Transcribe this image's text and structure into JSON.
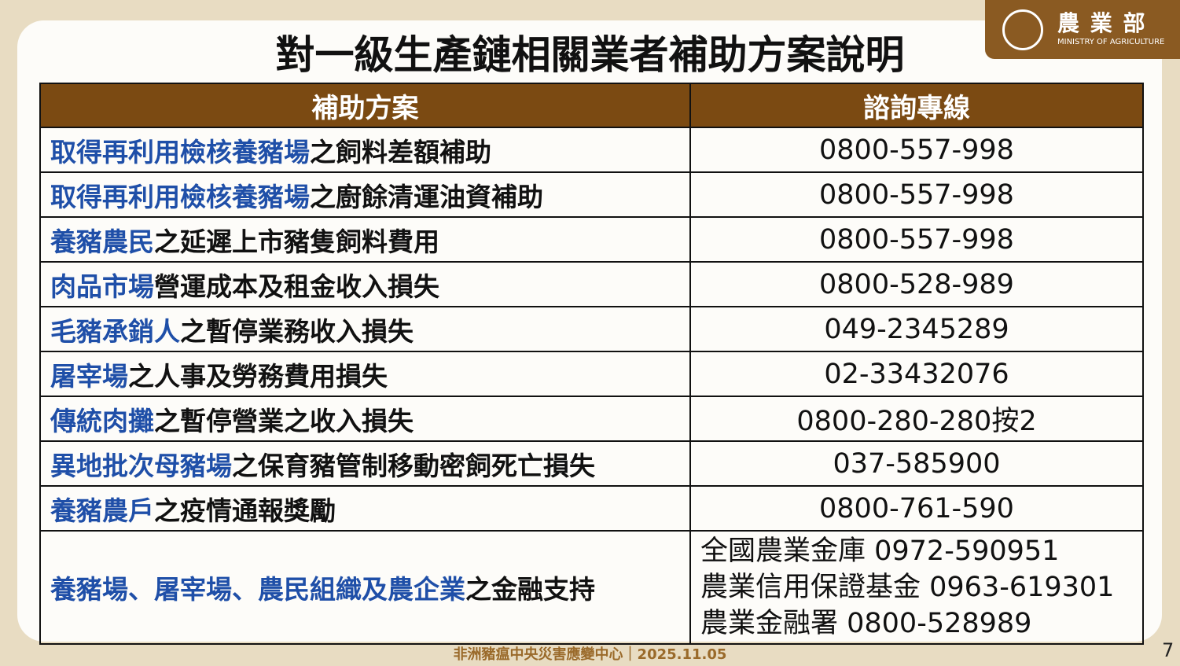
{
  "header": {
    "title": "對一級生產鏈相關業者補助方案說明",
    "logo_name": "農 業 部",
    "logo_subtitle": "MINISTRY OF AGRICULTURE"
  },
  "table": {
    "columns": [
      "補助方案",
      "諮詢專線"
    ],
    "rows": [
      {
        "program_highlight": "取得再利用檢核養豬場",
        "program_rest": "之飼料差額補助",
        "hotline": [
          "0800-557-998"
        ]
      },
      {
        "program_highlight": "取得再利用檢核養豬場",
        "program_rest": "之廚餘清運油資補助",
        "hotline": [
          "0800-557-998"
        ]
      },
      {
        "program_highlight": "養豬農民",
        "program_rest": "之延遲上市豬隻飼料費用",
        "hotline": [
          "0800-557-998"
        ]
      },
      {
        "program_highlight": "肉品市場",
        "program_rest": "營運成本及租金收入損失",
        "hotline": [
          "0800-528-989"
        ]
      },
      {
        "program_highlight": "毛豬承銷人",
        "program_rest": "之暫停業務收入損失",
        "hotline": [
          "049-2345289"
        ]
      },
      {
        "program_highlight": "屠宰場",
        "program_rest": "之人事及勞務費用損失",
        "hotline": [
          "02-33432076"
        ]
      },
      {
        "program_highlight": "傳統肉攤",
        "program_rest": "之暫停營業之收入損失",
        "hotline": [
          "0800-280-280按2"
        ]
      },
      {
        "program_highlight": "異地批次母豬場",
        "program_rest": "之保育豬管制移動密飼死亡損失",
        "hotline": [
          "037-585900"
        ]
      },
      {
        "program_highlight": "養豬農戶",
        "program_rest": "之疫情通報獎勵",
        "hotline": [
          "0800-761-590"
        ]
      },
      {
        "program_highlight": "養豬場、屠宰場、農民組織及農企業",
        "program_rest": "之金融支持",
        "hotline": [
          "全國農業金庫 0972-590951",
          "農業信用保證基金 0963-619301",
          "農業金融署 0800-528989"
        ]
      }
    ]
  },
  "footer": {
    "source": "非洲豬瘟中央災害應變中心｜2025.11.05",
    "page": "7"
  }
}
